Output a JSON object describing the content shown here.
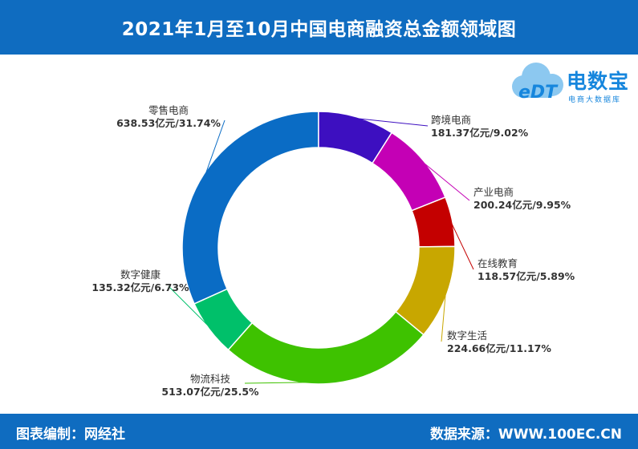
{
  "header": {
    "title": "2021年1月至10月中国电商融资总金额领域图"
  },
  "footer": {
    "left": "图表编制：网经社",
    "right": "数据来源：WWW.100EC.CN"
  },
  "logo": {
    "mark": "eDT",
    "name": "电数宝",
    "subtitle": "电商大数据库",
    "icon": "cloud-icon"
  },
  "chart_data": {
    "type": "donut",
    "title": "",
    "series": [
      {
        "name": "零售电商",
        "value": 638.53,
        "label": "638.53亿元/31.74%",
        "color": "#0a6cc5"
      },
      {
        "name": "跨境电商",
        "value": 181.37,
        "label": "181.37亿元/9.02%",
        "color": "#3d0fc0"
      },
      {
        "name": "产业电商",
        "value": 200.24,
        "label": "200.24亿元/9.95%",
        "color": "#c400b5"
      },
      {
        "name": "在线教育",
        "value": 118.57,
        "label": "118.57亿元/5.89%",
        "color": "#c40000"
      },
      {
        "name": "数字生活",
        "value": 224.66,
        "label": "224.66亿元/11.17%",
        "color": "#c8a700"
      },
      {
        "name": "物流科技",
        "value": 513.07,
        "label": "513.07亿元/25.5%",
        "color": "#3ec200"
      },
      {
        "name": "数字健康",
        "value": 135.32,
        "label": "135.32亿元/6.73%",
        "color": "#00c06a"
      }
    ]
  }
}
